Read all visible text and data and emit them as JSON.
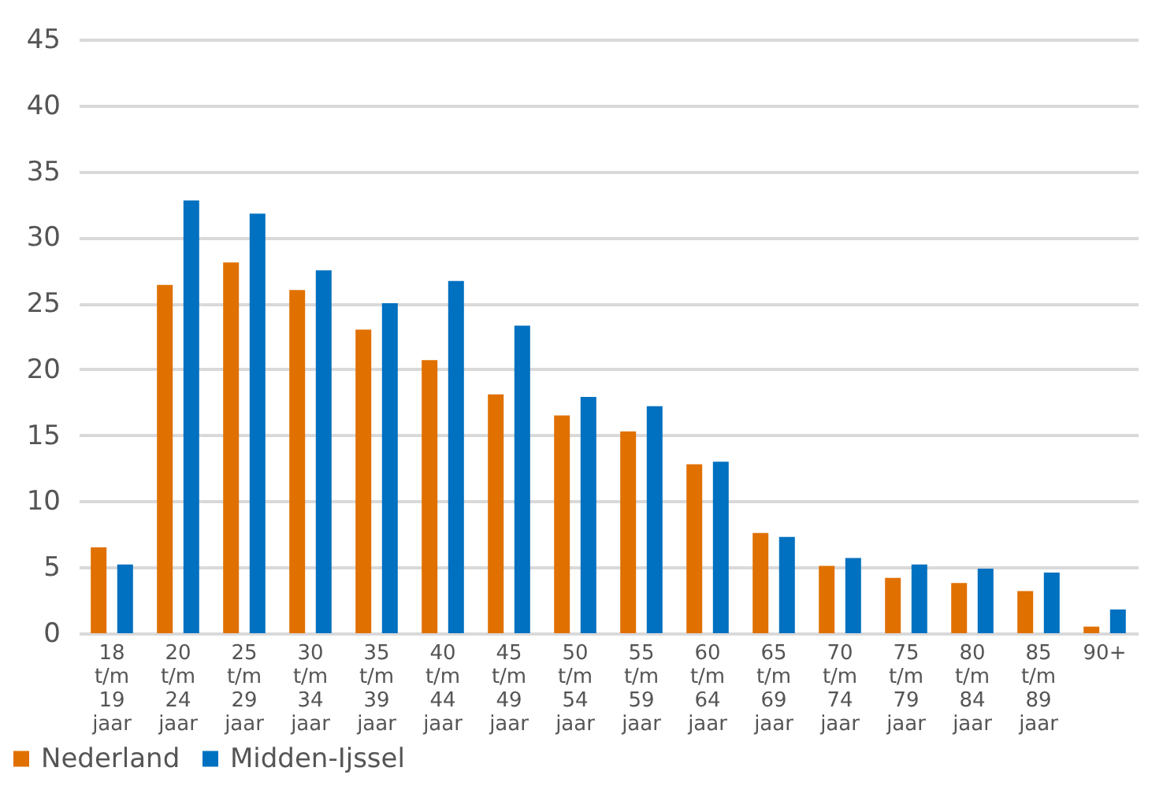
{
  "chart_data": {
    "type": "bar",
    "categories": [
      "18 t/m 19 jaar",
      "20 t/m 24 jaar",
      "25 t/m 29 jaar",
      "30 t/m 34 jaar",
      "35 t/m 39 jaar",
      "40 t/m 44 jaar",
      "45 t/m 49 jaar",
      "50 t/m 54 jaar",
      "55 t/m 59 jaar",
      "60 t/m 64 jaar",
      "65 t/m 69 jaar",
      "70 t/m 74 jaar",
      "75 t/m 79 jaar",
      "80 t/m 84 jaar",
      "85 t/m 89 jaar",
      "90+"
    ],
    "series": [
      {
        "name": "Nederland",
        "color": "#e07000",
        "values": [
          6.5,
          26.4,
          28.1,
          26.0,
          23.0,
          20.7,
          18.1,
          16.5,
          15.3,
          12.8,
          7.6,
          5.1,
          4.2,
          3.8,
          3.2,
          0.5
        ]
      },
      {
        "name": "Midden-Ijssel",
        "color": "#0070c0",
        "values": [
          5.2,
          32.8,
          31.8,
          27.5,
          25.0,
          26.7,
          23.3,
          17.9,
          17.2,
          13.0,
          7.3,
          5.7,
          5.2,
          4.9,
          4.6,
          1.8
        ]
      }
    ],
    "ylim": [
      0,
      45
    ],
    "yticks": [
      0,
      5,
      10,
      15,
      20,
      25,
      30,
      35,
      40,
      45
    ],
    "grid": "y",
    "legend": "bottom left"
  }
}
